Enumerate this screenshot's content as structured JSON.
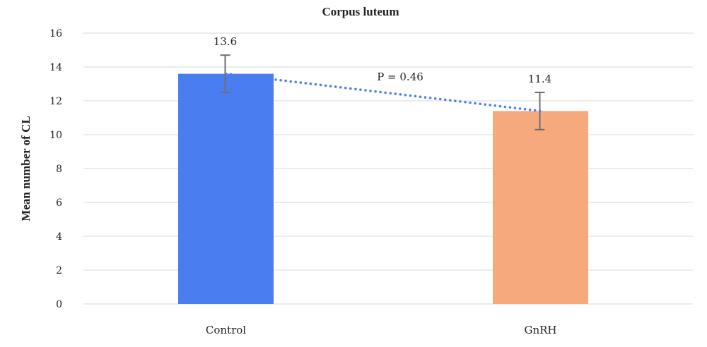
{
  "chart_data": {
    "type": "bar",
    "title": "Corpus luteum",
    "ylabel": "Mean number of CL",
    "xlabel": "",
    "categories": [
      "Control",
      "GnRH"
    ],
    "values": [
      13.6,
      11.4
    ],
    "value_labels": [
      "13.6",
      "11.4"
    ],
    "error_bars": [
      {
        "upper": 14.7,
        "lower": 12.5
      },
      {
        "upper": 12.5,
        "lower": 10.3
      }
    ],
    "bar_colors": [
      "#4a7ef0",
      "#f7a97e"
    ],
    "ylim": [
      0,
      16
    ],
    "yticks": [
      "0",
      "2",
      "4",
      "6",
      "8",
      "10",
      "12",
      "14",
      "16"
    ],
    "grid": true,
    "trendline": {
      "style": "dotted",
      "color": "#4a7ef0"
    },
    "annotation": "P = 0.46"
  }
}
